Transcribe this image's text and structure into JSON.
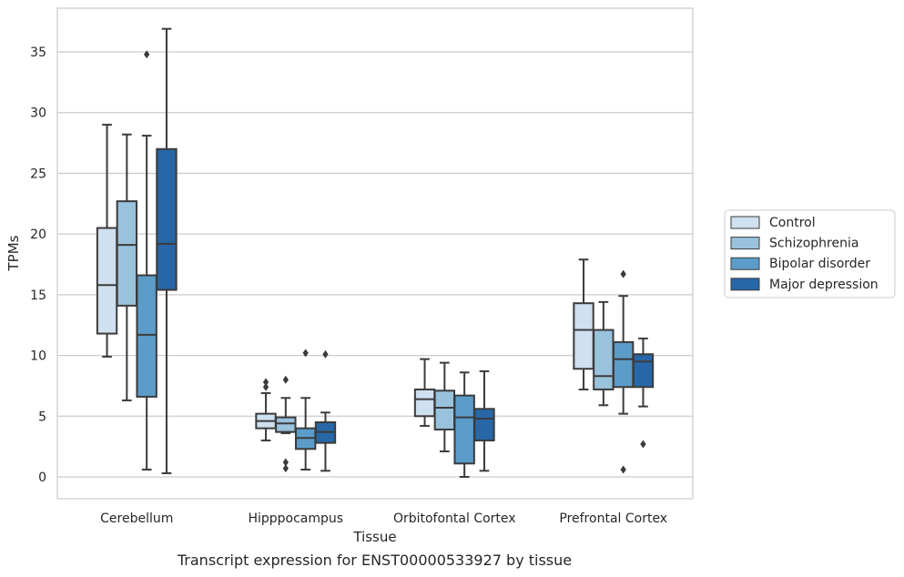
{
  "caption": "Transcript expression for ENST00000533927 by tissue",
  "chart_data": {
    "type": "boxplot",
    "xlabel": "Tissue",
    "ylabel": "TPMs",
    "ylim": [
      -1.8,
      38.6
    ],
    "yticks": [
      0,
      5,
      10,
      15,
      20,
      25,
      30,
      35
    ],
    "grid": "horizontal",
    "legend_position": "right",
    "categories": [
      "Cerebellum",
      "Hipppocampus",
      "Orbitofontal Cortex",
      "Prefrontal Cortex"
    ],
    "series": [
      {
        "name": "Control",
        "color": "#cfe0f0",
        "boxes": [
          {
            "whisker_low": 9.9,
            "q1": 11.8,
            "median": 15.8,
            "q3": 20.5,
            "whisker_high": 29.0,
            "outliers": []
          },
          {
            "whisker_low": 3.0,
            "q1": 4.0,
            "median": 4.6,
            "q3": 5.2,
            "whisker_high": 6.9,
            "outliers": [
              7.4,
              7.8
            ]
          },
          {
            "whisker_low": 4.2,
            "q1": 5.0,
            "median": 6.4,
            "q3": 7.2,
            "whisker_high": 9.7,
            "outliers": []
          },
          {
            "whisker_low": 7.2,
            "q1": 8.9,
            "median": 12.1,
            "q3": 14.3,
            "whisker_high": 17.9,
            "outliers": []
          }
        ]
      },
      {
        "name": "Schizophrenia",
        "color": "#99c2dc",
        "boxes": [
          {
            "whisker_low": 6.3,
            "q1": 14.1,
            "median": 19.1,
            "q3": 22.7,
            "whisker_high": 28.2,
            "outliers": []
          },
          {
            "whisker_low": 3.6,
            "q1": 3.7,
            "median": 4.4,
            "q3": 4.9,
            "whisker_high": 6.5,
            "outliers": [
              0.7,
              1.2,
              8.0
            ]
          },
          {
            "whisker_low": 2.1,
            "q1": 3.9,
            "median": 5.7,
            "q3": 7.1,
            "whisker_high": 9.4,
            "outliers": []
          },
          {
            "whisker_low": 5.9,
            "q1": 7.2,
            "median": 8.3,
            "q3": 12.1,
            "whisker_high": 14.4,
            "outliers": []
          }
        ]
      },
      {
        "name": "Bipolar disorder",
        "color": "#5b9cc9",
        "boxes": [
          {
            "whisker_low": 0.6,
            "q1": 6.6,
            "median": 11.7,
            "q3": 16.6,
            "whisker_high": 28.1,
            "outliers": [
              34.8
            ]
          },
          {
            "whisker_low": 0.6,
            "q1": 2.3,
            "median": 3.2,
            "q3": 4.0,
            "whisker_high": 6.5,
            "outliers": [
              10.2
            ]
          },
          {
            "whisker_low": 0.0,
            "q1": 1.1,
            "median": 4.9,
            "q3": 6.7,
            "whisker_high": 8.6,
            "outliers": []
          },
          {
            "whisker_low": 5.2,
            "q1": 7.4,
            "median": 9.7,
            "q3": 11.1,
            "whisker_high": 14.9,
            "outliers": [
              0.6,
              16.7
            ]
          }
        ]
      },
      {
        "name": "Major depression",
        "color": "#2767a8",
        "boxes": [
          {
            "whisker_low": 0.3,
            "q1": 15.4,
            "median": 19.2,
            "q3": 27.0,
            "whisker_high": 36.9,
            "outliers": []
          },
          {
            "whisker_low": 0.5,
            "q1": 2.8,
            "median": 3.7,
            "q3": 4.5,
            "whisker_high": 5.3,
            "outliers": [
              10.1
            ]
          },
          {
            "whisker_low": 0.5,
            "q1": 3.0,
            "median": 4.8,
            "q3": 5.6,
            "whisker_high": 8.7,
            "outliers": []
          },
          {
            "whisker_low": 5.8,
            "q1": 7.4,
            "median": 9.5,
            "q3": 10.1,
            "whisker_high": 11.4,
            "outliers": [
              2.7
            ]
          }
        ]
      }
    ]
  }
}
